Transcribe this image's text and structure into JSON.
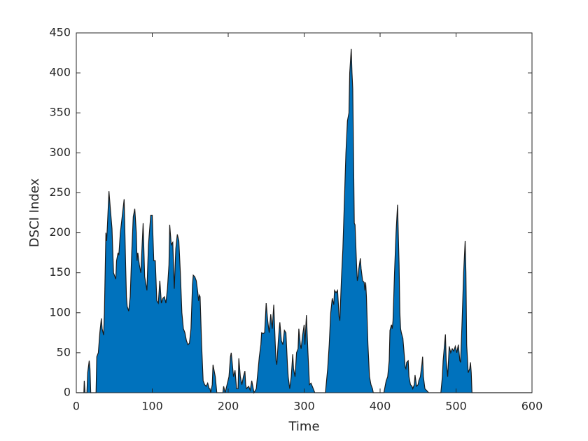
{
  "chart_data": {
    "type": "area",
    "xlabel": "Time",
    "ylabel": "DSCI Index",
    "color": "#0072bd",
    "edgecolor": "#1a1a1a",
    "xlim": [
      0,
      600
    ],
    "xticks": [
      0,
      100,
      200,
      300,
      400,
      500,
      600
    ],
    "ylim": [
      0,
      450
    ],
    "yticks": [
      0,
      50,
      100,
      150,
      200,
      250,
      300,
      350,
      400,
      450
    ],
    "x": [
      0,
      10,
      10.5,
      11.5,
      14,
      15,
      17,
      18,
      19,
      26,
      27,
      29,
      31,
      33,
      34,
      36,
      37,
      39,
      40,
      41,
      43,
      45,
      47,
      49,
      52,
      53,
      55,
      56,
      58,
      63,
      65,
      66,
      67,
      69,
      71,
      73,
      75,
      77,
      79,
      80,
      81,
      83,
      85,
      88,
      90,
      93,
      95,
      98,
      100,
      102,
      104,
      106,
      108,
      110,
      112,
      114,
      116,
      118,
      120,
      122,
      123,
      125,
      127,
      129,
      131,
      133,
      135,
      137,
      139,
      141,
      143,
      145,
      147,
      149,
      151,
      153,
      154,
      156,
      158,
      160,
      161,
      162,
      163,
      165,
      167,
      169,
      171,
      173,
      175,
      176,
      177,
      179,
      180,
      182,
      183,
      185,
      193,
      194,
      196,
      201,
      203,
      204,
      206,
      207,
      209,
      211,
      213,
      214,
      216,
      218,
      220,
      222,
      223,
      224,
      227,
      229,
      231,
      233,
      234,
      237,
      239,
      241,
      243,
      244,
      246,
      248,
      250,
      252,
      254,
      256,
      258,
      260,
      262,
      263,
      264,
      266,
      268,
      270,
      272,
      274,
      276,
      278,
      279,
      281,
      283,
      285,
      286,
      288,
      290,
      292,
      293,
      295,
      296,
      298,
      300,
      301,
      303,
      305,
      307,
      309,
      312,
      314,
      328,
      331,
      333,
      335,
      337,
      339,
      340,
      342,
      344,
      346,
      347,
      349,
      351,
      353,
      355,
      357,
      359,
      360,
      362,
      363,
      364,
      365,
      366,
      367,
      369,
      370,
      371,
      372,
      374,
      375,
      377,
      379,
      380,
      381,
      382,
      384,
      386,
      388,
      390,
      391,
      405,
      406,
      408,
      410,
      412,
      413,
      415,
      416,
      417,
      419,
      421,
      423,
      425,
      426,
      427,
      428,
      430,
      432,
      433,
      434,
      435,
      437,
      438,
      440,
      442,
      443,
      445,
      446,
      448,
      450,
      451,
      453,
      455,
      456,
      457,
      459,
      461,
      464,
      480,
      482,
      483,
      486,
      487,
      488,
      489,
      491,
      493,
      495,
      497,
      499,
      501,
      503,
      505,
      506,
      508,
      509,
      510,
      512,
      513,
      514,
      516,
      518,
      519,
      520,
      521,
      600
    ],
    "values": [
      0,
      0,
      15,
      0,
      0,
      25,
      40,
      30,
      0,
      0,
      45,
      50,
      75,
      93,
      80,
      72,
      100,
      200,
      190,
      210,
      252,
      228,
      205,
      150,
      142,
      165,
      175,
      172,
      200,
      242,
      158,
      120,
      108,
      102,
      120,
      175,
      220,
      230,
      200,
      165,
      175,
      160,
      150,
      212,
      145,
      128,
      185,
      222,
      222,
      165,
      165,
      115,
      112,
      140,
      112,
      118,
      120,
      112,
      130,
      160,
      210,
      185,
      188,
      130,
      180,
      198,
      190,
      150,
      100,
      80,
      75,
      65,
      60,
      62,
      80,
      135,
      147,
      145,
      140,
      125,
      115,
      122,
      120,
      60,
      15,
      10,
      8,
      12,
      5,
      5,
      0,
      10,
      35,
      25,
      20,
      0,
      0,
      8,
      0,
      20,
      45,
      50,
      30,
      20,
      28,
      5,
      5,
      43,
      20,
      10,
      20,
      27,
      10,
      5,
      8,
      3,
      15,
      5,
      0,
      5,
      25,
      45,
      60,
      75,
      74,
      75,
      112,
      90,
      75,
      98,
      80,
      110,
      60,
      40,
      35,
      65,
      88,
      65,
      60,
      78,
      75,
      35,
      20,
      5,
      20,
      48,
      30,
      20,
      50,
      55,
      80,
      60,
      55,
      72,
      85,
      60,
      97,
      50,
      10,
      12,
      5,
      0,
      0,
      30,
      60,
      100,
      118,
      110,
      128,
      125,
      128,
      95,
      90,
      140,
      180,
      240,
      300,
      340,
      350,
      400,
      430,
      400,
      380,
      300,
      212,
      210,
      160,
      140,
      145,
      155,
      168,
      155,
      140,
      138,
      128,
      138,
      120,
      60,
      20,
      10,
      5,
      0,
      0,
      5,
      15,
      20,
      40,
      78,
      85,
      80,
      90,
      150,
      200,
      235,
      160,
      100,
      80,
      75,
      68,
      45,
      32,
      30,
      38,
      40,
      20,
      10,
      8,
      5,
      10,
      22,
      8,
      10,
      15,
      20,
      35,
      45,
      20,
      5,
      3,
      0,
      0,
      20,
      40,
      73,
      40,
      30,
      20,
      58,
      50,
      55,
      52,
      58,
      50,
      60,
      40,
      38,
      90,
      120,
      150,
      190,
      150,
      60,
      25,
      30,
      38,
      25,
      0,
      0
    ]
  }
}
